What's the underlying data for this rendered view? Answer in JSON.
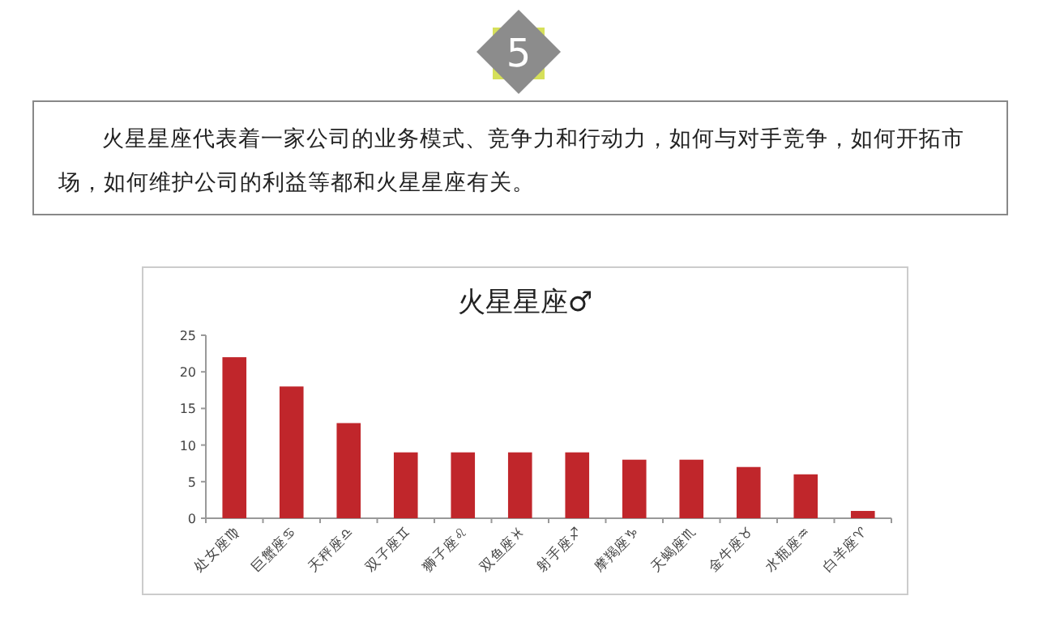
{
  "chart_data": {
    "type": "bar",
    "title": "火星星座♂",
    "categories": [
      "处女座♍",
      "巨蟹座♋",
      "天秤座♎",
      "双子座♊",
      "狮子座♌",
      "双鱼座♓",
      "射手座♐",
      "摩羯座♑",
      "天蝎座♏",
      "金牛座♉",
      "水瓶座♒",
      "白羊座♈"
    ],
    "values": [
      22,
      18,
      13,
      9,
      9,
      9,
      9,
      8,
      8,
      7,
      6,
      1
    ],
    "color": "#c0262b",
    "ylim": [
      0,
      25
    ],
    "yticks": [
      0,
      5,
      10,
      15,
      20,
      25
    ],
    "annotations": [
      "5",
      "火星星座代表着一家公司的业务模式、竞争力和行动力，如何与对手竞争，如何开拓市场，如何维护公司的利益等都和火星星座有关。"
    ]
  }
}
